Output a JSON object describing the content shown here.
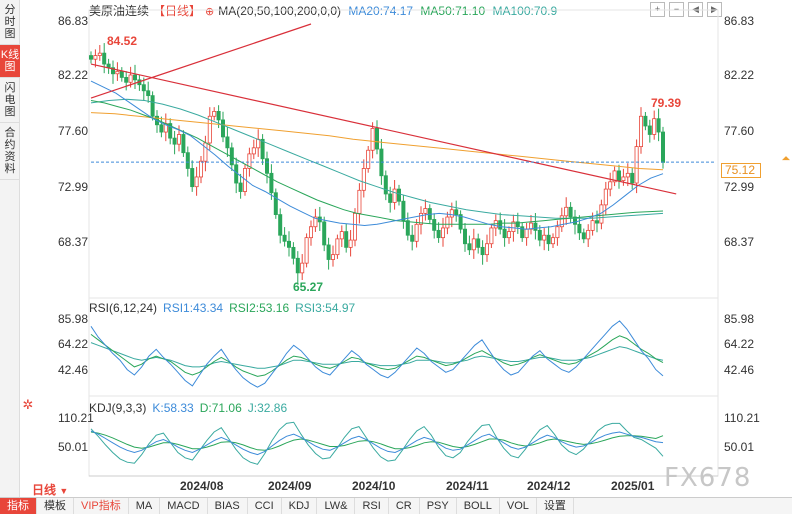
{
  "left_tabs": [
    "分时图",
    "K线图",
    "闪电图",
    "合约资料"
  ],
  "left_tab_active": 1,
  "header": {
    "symbol": "美原油连续",
    "period": "【日线】",
    "ma_params": "MA(20,50,100,200,0,0)",
    "ma20": "MA20:74.17",
    "ma50": "MA50:71.10",
    "ma100": "MA100:70.9"
  },
  "toolbar_icons": [
    "plus-icon",
    "minus-icon",
    "left-icon",
    "right-icon"
  ],
  "main_axis": {
    "labels": [
      "86.83",
      "82.22",
      "77.60",
      "72.99",
      "68.37"
    ],
    "current_price": "75.12",
    "high_label": "84.52",
    "low_label": "65.27",
    "recent_high_label": "79.39"
  },
  "rsi": {
    "params": "RSI(6,12,24)",
    "rsi1": "RSI1:43.34",
    "rsi2": "RSI2:53.16",
    "rsi3": "RSI3:54.97",
    "labels": [
      "85.98",
      "64.22",
      "42.46"
    ]
  },
  "kdj": {
    "params": "KDJ(9,3,3)",
    "k": "K:58.33",
    "d": "D:71.06",
    "j": "J:32.86",
    "labels": [
      "110.21",
      "50.01"
    ]
  },
  "x_labels": [
    "2024/08",
    "2024/09",
    "2024/10",
    "2024/11",
    "2024/12",
    "2025/01"
  ],
  "period_selector": "日线",
  "watermark": "FX678",
  "bottom_tabs": [
    "指标",
    "模板",
    "VIP指标",
    "MA",
    "MACD",
    "BIAS",
    "CCI",
    "KDJ",
    "LW&",
    "RSI",
    "CR",
    "PSY",
    "BOLL",
    "VOL",
    "设置"
  ],
  "bottom_active": 0,
  "colors": {
    "up": "#e8463a",
    "down": "#2aa65a",
    "ma20": "#3d8bd9",
    "ma50": "#2aa65a",
    "ma100": "#3aaaa0",
    "ma200": "#f0a030",
    "trend": "#d9303a"
  },
  "chart_data": {
    "type": "candlestick",
    "ylim": [
      65.0,
      86.83
    ],
    "current_price": 75.12,
    "closes": [
      83.6,
      83.9,
      84.1,
      83.2,
      82.9,
      82.4,
      82.6,
      82.1,
      81.7,
      82.3,
      81.9,
      81.5,
      81.0,
      80.6,
      78.9,
      78.2,
      77.6,
      78.3,
      77.1,
      76.6,
      77.4,
      75.9,
      74.6,
      73.1,
      73.9,
      75.2,
      76.7,
      78.9,
      79.3,
      78.6,
      77.2,
      76.3,
      74.9,
      73.4,
      72.7,
      74.6,
      75.8,
      76.3,
      77.0,
      75.4,
      74.2,
      72.6,
      70.8,
      69.1,
      68.6,
      68.1,
      67.2,
      66.0,
      66.8,
      68.9,
      69.8,
      70.6,
      70.2,
      68.3,
      67.1,
      67.5,
      68.8,
      69.4,
      68.1,
      68.7,
      70.9,
      72.8,
      74.6,
      76.1,
      77.9,
      76.2,
      74.0,
      72.5,
      71.8,
      72.9,
      71.9,
      70.3,
      69.1,
      68.6,
      70.0,
      70.9,
      71.3,
      70.4,
      69.5,
      68.9,
      69.7,
      70.6,
      71.2,
      70.8,
      69.6,
      68.4,
      67.9,
      68.8,
      68.1,
      67.5,
      68.4,
      69.7,
      70.3,
      69.6,
      68.9,
      69.4,
      70.2,
      69.8,
      68.9,
      69.6,
      70.1,
      69.5,
      68.7,
      69.1,
      68.4,
      68.9,
      69.8,
      70.7,
      71.4,
      70.6,
      70.0,
      69.3,
      68.8,
      69.5,
      70.3,
      70.1,
      71.6,
      72.9,
      73.5,
      74.4,
      73.6,
      73.9,
      74.2,
      73.4,
      76.4,
      78.9,
      78.1,
      77.4,
      78.7,
      77.6,
      75.1
    ],
    "ma20": [
      81.8,
      81.3,
      80.8,
      80.1,
      79.4,
      78.7,
      78.2,
      77.8,
      77.3,
      76.5,
      75.7,
      74.8,
      74.0,
      73.2,
      72.7,
      72.1,
      71.5,
      71.0,
      70.5,
      70.3,
      70.1,
      70.0,
      69.9,
      70.0,
      70.2,
      70.4,
      70.6,
      70.8,
      70.9,
      70.8,
      70.6,
      70.3,
      70.0,
      69.8,
      69.7,
      69.6,
      69.7,
      69.8,
      70.0,
      70.2,
      70.5,
      70.9,
      71.6,
      72.4,
      73.2,
      73.8,
      74.17
    ],
    "ma50": [
      80.2,
      80.0,
      79.7,
      79.4,
      79.0,
      78.6,
      78.1,
      77.6,
      77.1,
      76.5,
      75.9,
      75.3,
      74.7,
      74.1,
      73.5,
      73.0,
      72.5,
      72.0,
      71.6,
      71.2,
      70.9,
      70.7,
      70.5,
      70.3,
      70.2,
      70.1,
      70.0,
      70.0,
      70.0,
      70.0,
      70.0,
      70.1,
      70.1,
      70.2,
      70.3,
      70.4,
      70.5,
      70.6,
      70.7,
      70.8,
      70.9,
      71.0,
      71.05,
      71.1
    ],
    "ma100": [
      80.0,
      80.2,
      80.3,
      80.2,
      79.9,
      79.5,
      79.0,
      78.4,
      77.8,
      77.2,
      76.6,
      76.0,
      75.4,
      74.8,
      74.2,
      73.6,
      73.1,
      72.6,
      72.2,
      71.8,
      71.5,
      71.2,
      71.0,
      70.8,
      70.7,
      70.6,
      70.5,
      70.5,
      70.5,
      70.6,
      70.7,
      70.8,
      70.9
    ],
    "ma200": [
      79.2,
      79.1,
      78.9,
      78.7,
      78.5,
      78.3,
      78.1,
      77.9,
      77.7,
      77.5,
      77.3,
      77.0,
      76.8,
      76.6,
      76.4,
      76.2,
      76.0,
      75.8,
      75.6,
      75.4,
      75.2,
      75.0,
      74.8,
      74.6,
      74.5
    ],
    "rsi_ylim": [
      30,
      95
    ],
    "rsi1": [
      80,
      72,
      66,
      60,
      55,
      48,
      44,
      50,
      58,
      63,
      57,
      52,
      46,
      40,
      36,
      44,
      52,
      58,
      63,
      55,
      48,
      42,
      38,
      35,
      38,
      45,
      52,
      60,
      66,
      62,
      56,
      50,
      46,
      44,
      50,
      56,
      62,
      58,
      52,
      48,
      44,
      42,
      46,
      52,
      58,
      64,
      60,
      54,
      50,
      46,
      48,
      54,
      60,
      66,
      70,
      62,
      54,
      48,
      44,
      46,
      52,
      58,
      62,
      56,
      52,
      48,
      46,
      50,
      56,
      62,
      68,
      74,
      80,
      84,
      78,
      70,
      62,
      56,
      48,
      43.34
    ],
    "rsi2": [
      74,
      70,
      66,
      62,
      58,
      54,
      50,
      52,
      56,
      58,
      56,
      54,
      50,
      46,
      44,
      46,
      50,
      54,
      57,
      54,
      50,
      47,
      45,
      43,
      44,
      47,
      51,
      55,
      58,
      57,
      55,
      52,
      50,
      49,
      51,
      54,
      57,
      56,
      53,
      51,
      49,
      48,
      49,
      52,
      55,
      58,
      57,
      55,
      53,
      51,
      52,
      54,
      57,
      60,
      62,
      59,
      56,
      53,
      51,
      52,
      54,
      57,
      59,
      57,
      55,
      53,
      52,
      53,
      56,
      59,
      62,
      66,
      70,
      73,
      71,
      67,
      63,
      60,
      56,
      53.16
    ],
    "rsi3": [
      68,
      66,
      64,
      62,
      60,
      58,
      56,
      55,
      56,
      57,
      56,
      55,
      53,
      51,
      50,
      50,
      51,
      53,
      54,
      53,
      52,
      51,
      50,
      49,
      49,
      50,
      51,
      53,
      55,
      55,
      54,
      53,
      52,
      52,
      52,
      53,
      54,
      54,
      53,
      52,
      51,
      51,
      51,
      52,
      53,
      55,
      55,
      55,
      54,
      53,
      53,
      54,
      55,
      57,
      58,
      57,
      56,
      55,
      54,
      54,
      55,
      56,
      57,
      57,
      56,
      55,
      55,
      55,
      56,
      57,
      59,
      61,
      63,
      65,
      64,
      62,
      60,
      58,
      56,
      54.97
    ],
    "kdj_ylim": [
      0,
      130
    ],
    "k": [
      80,
      74,
      66,
      58,
      50,
      44,
      40,
      44,
      52,
      60,
      64,
      58,
      50,
      44,
      40,
      46,
      54,
      62,
      68,
      62,
      54,
      46,
      40,
      36,
      42,
      52,
      62,
      70,
      74,
      68,
      60,
      52,
      46,
      44,
      50,
      58,
      66,
      70,
      64,
      56,
      48,
      42,
      40,
      46,
      54,
      62,
      68,
      64,
      56,
      48,
      44,
      46,
      54,
      62,
      70,
      74,
      66,
      58,
      50,
      46,
      50,
      58,
      66,
      72,
      68,
      60,
      54,
      50,
      52,
      58,
      66,
      72,
      76,
      78,
      74,
      70,
      68,
      64,
      60,
      58.33
    ],
    "d": [
      78,
      76,
      72,
      67,
      61,
      55,
      50,
      48,
      50,
      54,
      58,
      58,
      55,
      51,
      47,
      47,
      50,
      54,
      59,
      60,
      58,
      54,
      49,
      45,
      44,
      47,
      52,
      58,
      63,
      65,
      63,
      59,
      55,
      51,
      51,
      53,
      57,
      61,
      62,
      60,
      56,
      51,
      47,
      47,
      49,
      53,
      58,
      60,
      59,
      55,
      51,
      49,
      51,
      55,
      60,
      65,
      65,
      63,
      58,
      54,
      52,
      54,
      58,
      63,
      65,
      63,
      60,
      57,
      55,
      56,
      59,
      63,
      67,
      70,
      71,
      71,
      70,
      68,
      66,
      71.06
    ],
    "j": [
      84,
      70,
      54,
      40,
      28,
      22,
      20,
      36,
      56,
      72,
      76,
      58,
      40,
      30,
      26,
      44,
      62,
      78,
      86,
      66,
      46,
      30,
      22,
      18,
      38,
      62,
      82,
      94,
      96,
      74,
      54,
      38,
      28,
      30,
      48,
      68,
      84,
      88,
      68,
      48,
      32,
      24,
      26,
      44,
      64,
      80,
      88,
      72,
      50,
      34,
      30,
      40,
      60,
      76,
      90,
      92,
      68,
      48,
      34,
      30,
      46,
      66,
      82,
      90,
      74,
      54,
      42,
      36,
      46,
      62,
      80,
      90,
      94,
      94,
      80,
      68,
      64,
      56,
      48,
      32.86
    ],
    "trendlines": [
      {
        "name": "upper",
        "from": {
          "idx": 0,
          "price": 80.4
        },
        "to": {
          "idx": 50,
          "price": 86.5
        }
      },
      {
        "name": "lower",
        "from": {
          "idx": 0,
          "price": 83.2
        },
        "to": {
          "idx": 133,
          "price": 72.5
        }
      }
    ]
  }
}
